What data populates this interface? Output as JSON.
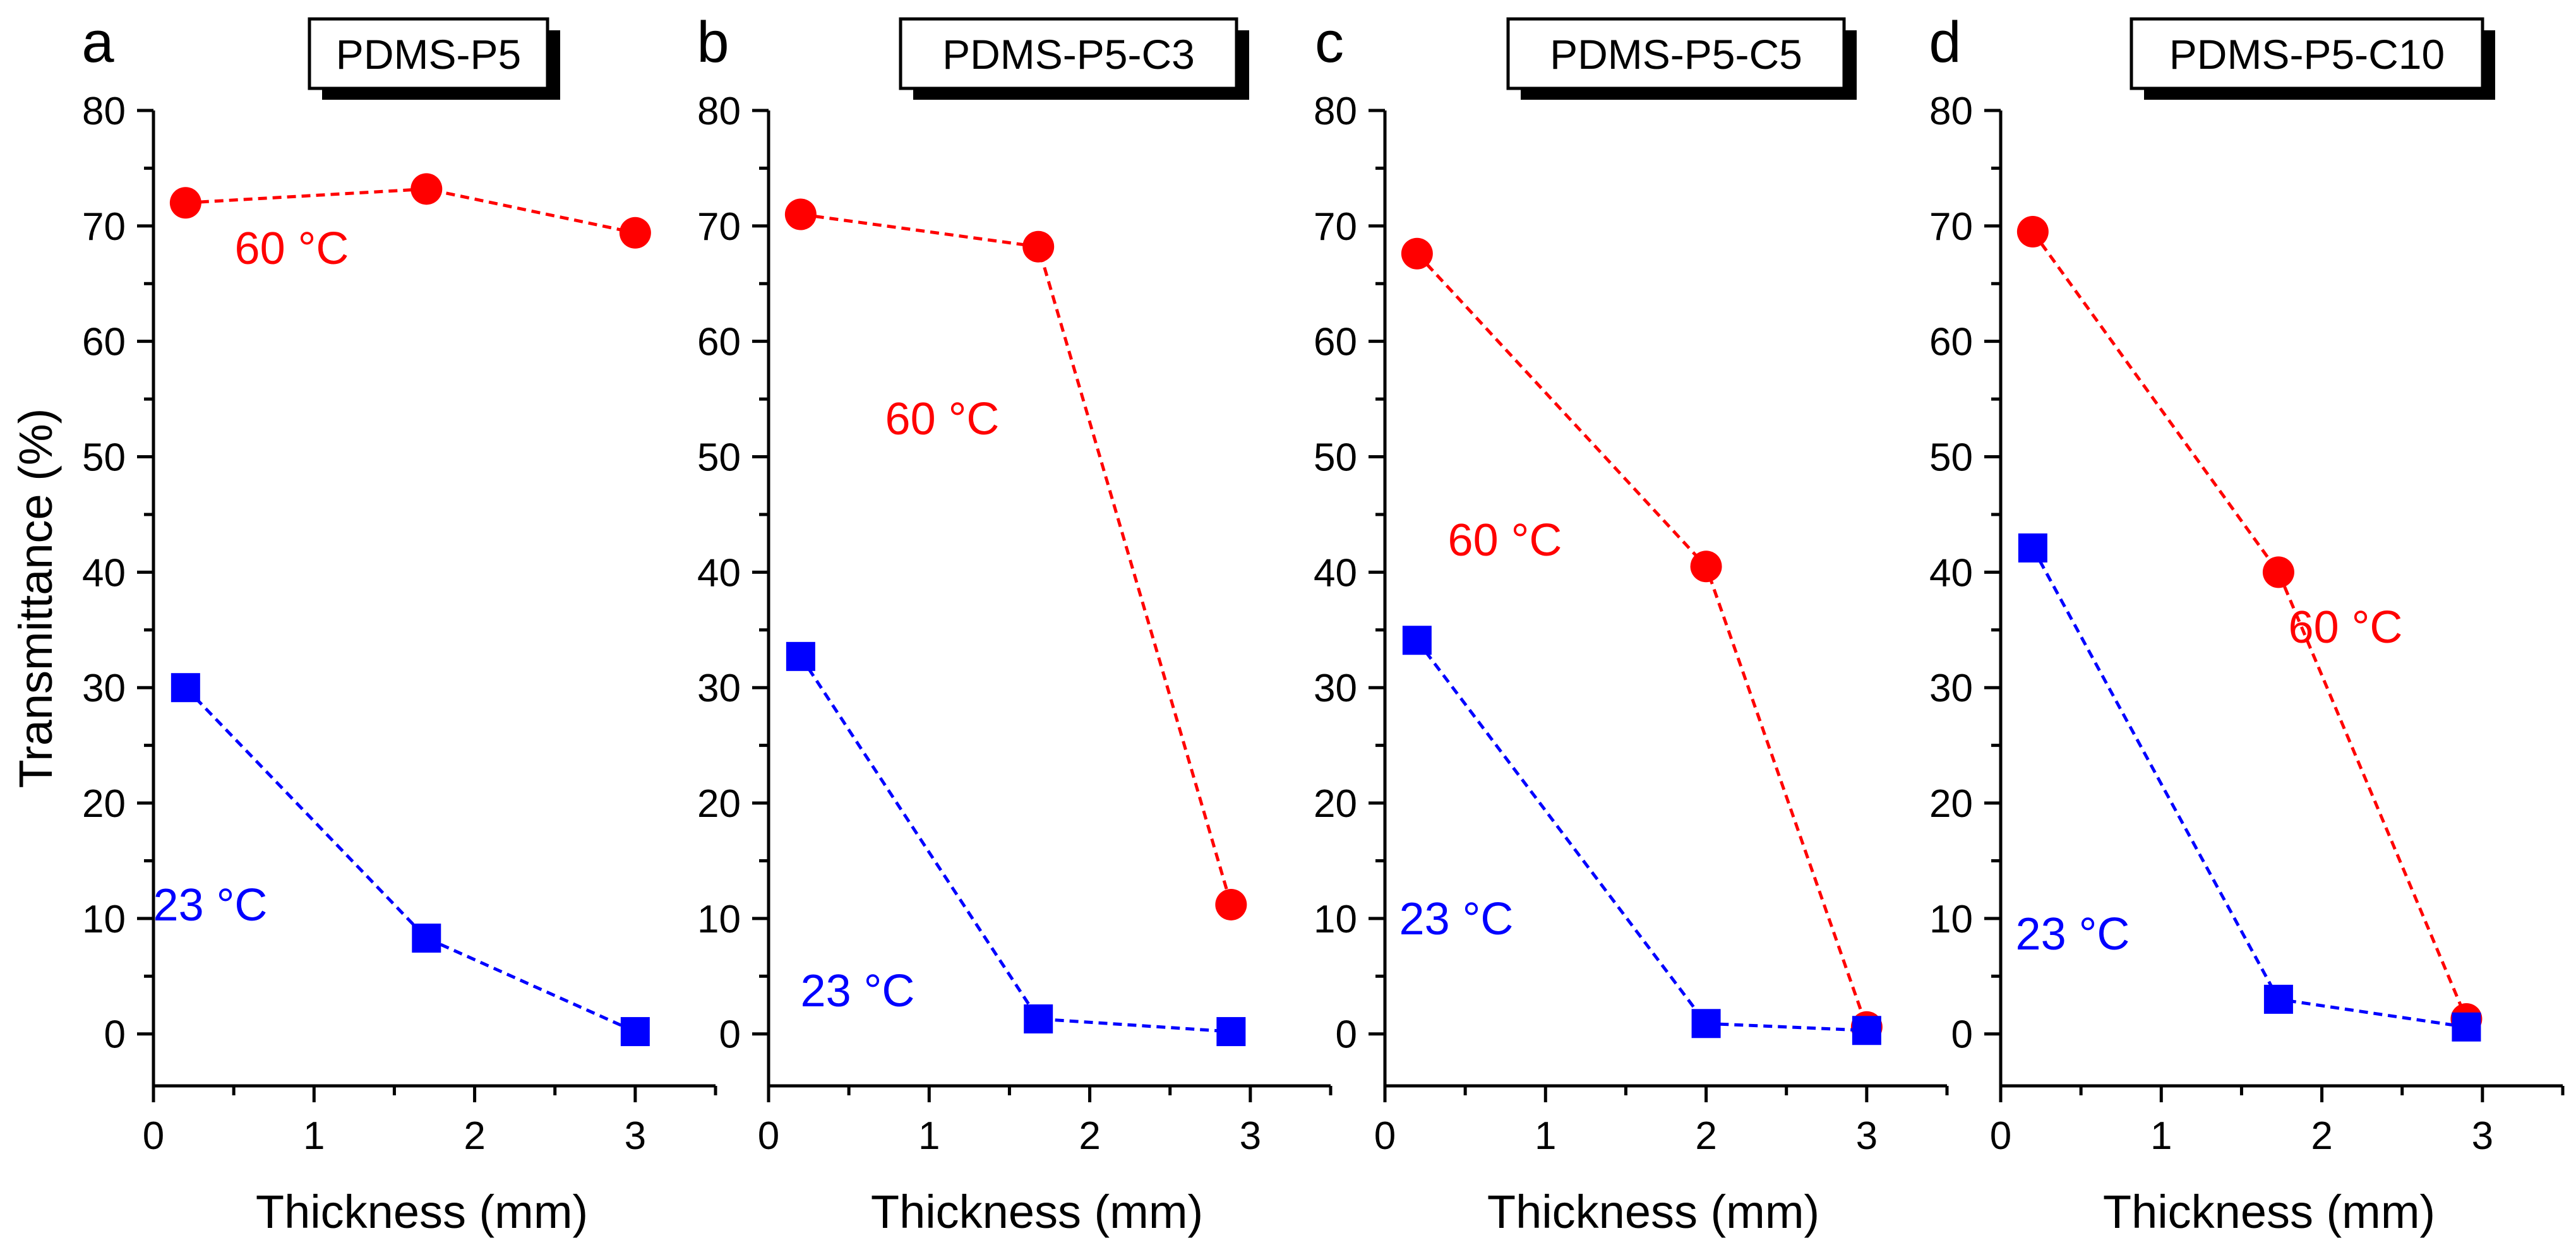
{
  "chart_data": [
    {
      "panel": "a",
      "title": "PDMS-P5",
      "type": "line",
      "xlabel": "Thickness (mm)",
      "ylabel": "Transmittance (%)",
      "xlim": [
        0,
        3.5
      ],
      "ylim": [
        -4.5,
        80
      ],
      "xticks": [
        "0",
        "1",
        "2",
        "3"
      ],
      "yticks": [
        "0",
        "10",
        "20",
        "30",
        "40",
        "50",
        "60",
        "70",
        "80"
      ],
      "series": [
        {
          "name": "60 °C",
          "color": "#ff0000",
          "marker": "circle",
          "x": [
            0.2,
            1.7,
            3.0
          ],
          "y": [
            72.0,
            73.2,
            69.4
          ]
        },
        {
          "name": "23 °C",
          "color": "#0000ff",
          "marker": "square",
          "x": [
            0.2,
            1.7,
            3.0
          ],
          "y": [
            30.0,
            8.3,
            0.2
          ]
        }
      ]
    },
    {
      "panel": "b",
      "title": "PDMS-P5-C3",
      "type": "line",
      "xlabel": "Thickness (mm)",
      "ylabel": "",
      "xlim": [
        0,
        3.5
      ],
      "ylim": [
        -4.5,
        80
      ],
      "xticks": [
        "0",
        "1",
        "2",
        "3"
      ],
      "yticks": [
        "0",
        "10",
        "20",
        "30",
        "40",
        "50",
        "60",
        "70",
        "80"
      ],
      "series": [
        {
          "name": "60 °C",
          "color": "#ff0000",
          "marker": "circle",
          "x": [
            0.2,
            1.68,
            2.88
          ],
          "y": [
            71.0,
            68.2,
            11.2
          ]
        },
        {
          "name": "23 °C",
          "color": "#0000ff",
          "marker": "square",
          "x": [
            0.2,
            1.68,
            2.88
          ],
          "y": [
            32.7,
            1.3,
            0.2
          ]
        }
      ]
    },
    {
      "panel": "c",
      "title": "PDMS-P5-C5",
      "type": "line",
      "xlabel": "Thickness (mm)",
      "ylabel": "",
      "xlim": [
        0,
        3.5
      ],
      "ylim": [
        -4.5,
        80
      ],
      "xticks": [
        "0",
        "1",
        "2",
        "3"
      ],
      "yticks": [
        "0",
        "10",
        "20",
        "30",
        "40",
        "50",
        "60",
        "70",
        "80"
      ],
      "series": [
        {
          "name": "60 °C",
          "color": "#ff0000",
          "marker": "circle",
          "x": [
            0.2,
            2.0,
            3.0
          ],
          "y": [
            67.6,
            40.5,
            0.6
          ]
        },
        {
          "name": "23 °C",
          "color": "#0000ff",
          "marker": "square",
          "x": [
            0.2,
            2.0,
            3.0
          ],
          "y": [
            34.1,
            0.9,
            0.3
          ]
        }
      ]
    },
    {
      "panel": "d",
      "title": "PDMS-P5-C10",
      "type": "line",
      "xlabel": "Thickness (mm)",
      "ylabel": "",
      "xlim": [
        0,
        3.5
      ],
      "ylim": [
        -4.5,
        80
      ],
      "xticks": [
        "0",
        "1",
        "2",
        "3"
      ],
      "yticks": [
        "0",
        "10",
        "20",
        "30",
        "40",
        "50",
        "60",
        "70",
        "80"
      ],
      "series": [
        {
          "name": "60 °C",
          "color": "#ff0000",
          "marker": "circle",
          "x": [
            0.2,
            1.73,
            2.9
          ],
          "y": [
            69.5,
            40.0,
            1.3
          ]
        },
        {
          "name": "23 °C",
          "color": "#0000ff",
          "marker": "square",
          "x": [
            0.2,
            1.73,
            2.9
          ],
          "y": [
            42.1,
            3.0,
            0.6
          ]
        }
      ]
    }
  ]
}
